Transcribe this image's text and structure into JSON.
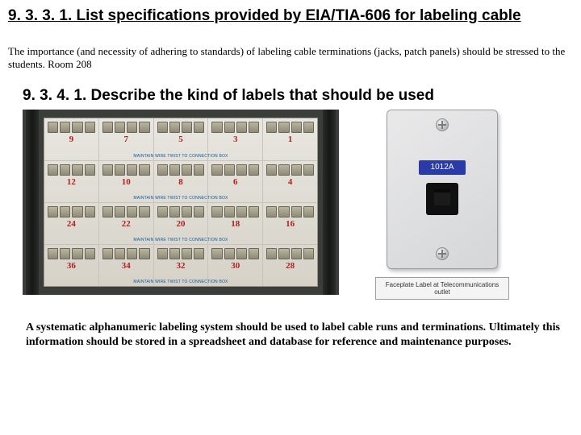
{
  "heading1": "9. 3. 3. 1. List specifications provided by EIA/TIA-606 for labeling cable",
  "body1": "The importance (and necessity of adhering to standards) of labeling cable terminations (jacks, patch panels) should be stressed to the students.   Room 208",
  "heading2": "9. 3. 4. 1. Describe the kind of labels that should be used",
  "patchpanel": {
    "row_caption": "MAINTAIN WIRE TWIST TO CONNECTION BOX",
    "rows": [
      {
        "nums": [
          "9",
          "7",
          "5",
          "3",
          "1"
        ]
      },
      {
        "nums": [
          "12",
          "10",
          "8",
          "6",
          "4"
        ]
      },
      {
        "nums": [
          "24",
          "22",
          "20",
          "18",
          "16"
        ]
      },
      {
        "nums": [
          "36",
          "34",
          "32",
          "30",
          "28"
        ]
      }
    ],
    "colors": {
      "frame_bg": "#3a3d3a",
      "panel_bg1": "#e8e6e0",
      "panel_bg2": "#d6d2c8",
      "num_color": "#b02020"
    }
  },
  "faceplate": {
    "label_text": "1012A",
    "caption": "Faceplate Label at Telecommunications outlet",
    "colors": {
      "plate_bg1": "#e9e9ea",
      "plate_bg2": "#d5d6d8",
      "label_bg": "#2a3aa8",
      "label_fg": "#ffffff",
      "jack_bg": "#101010"
    }
  },
  "footer": "A systematic alphanumeric labeling system should be used to label cable runs and terminations. Ultimately this information should be stored in a spreadsheet and database for reference and maintenance purposes."
}
